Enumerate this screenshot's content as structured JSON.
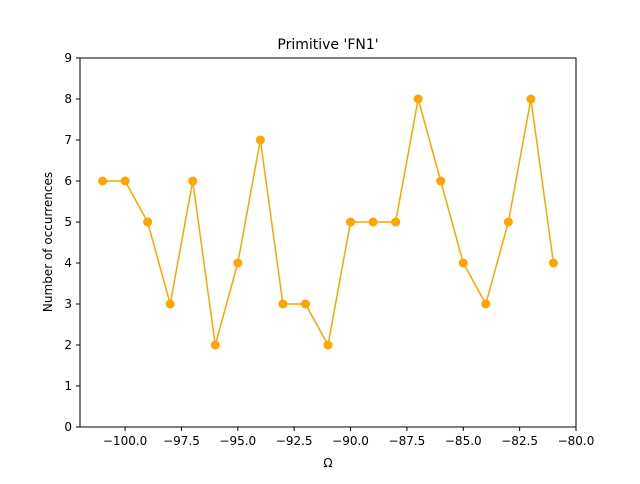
{
  "chart_data": {
    "type": "line",
    "title": "Primitive 'FN1'",
    "xlabel": "Ω",
    "ylabel": "Number of occurrences",
    "xlim": [
      -102,
      -80
    ],
    "ylim": [
      0,
      9
    ],
    "x_ticks": [
      -100.0,
      -97.5,
      -95.0,
      -92.5,
      -90.0,
      -87.5,
      -85.0,
      -82.5,
      -80.0
    ],
    "x_tick_labels": [
      "−100.0",
      "−97.5",
      "−95.0",
      "−92.5",
      "−90.0",
      "−87.5",
      "−85.0",
      "−82.5",
      "−80.0"
    ],
    "y_ticks": [
      0,
      1,
      2,
      3,
      4,
      5,
      6,
      7,
      8,
      9
    ],
    "y_tick_labels": [
      "0",
      "1",
      "2",
      "3",
      "4",
      "5",
      "6",
      "7",
      "8",
      "9"
    ],
    "grid": false,
    "legend": "none",
    "color": "#FFA500",
    "series": [
      {
        "x": [
          -101,
          -100,
          -99,
          -98,
          -97,
          -96,
          -95,
          -94,
          -93,
          -92,
          -91,
          -90,
          -89,
          -88,
          -87,
          -86,
          -85,
          -84,
          -83,
          -82,
          -81
        ],
        "values": [
          6,
          6,
          5,
          3,
          6,
          2,
          4,
          7,
          3,
          3,
          2,
          5,
          5,
          5,
          8,
          6,
          4,
          3,
          5,
          8,
          4
        ]
      }
    ]
  }
}
